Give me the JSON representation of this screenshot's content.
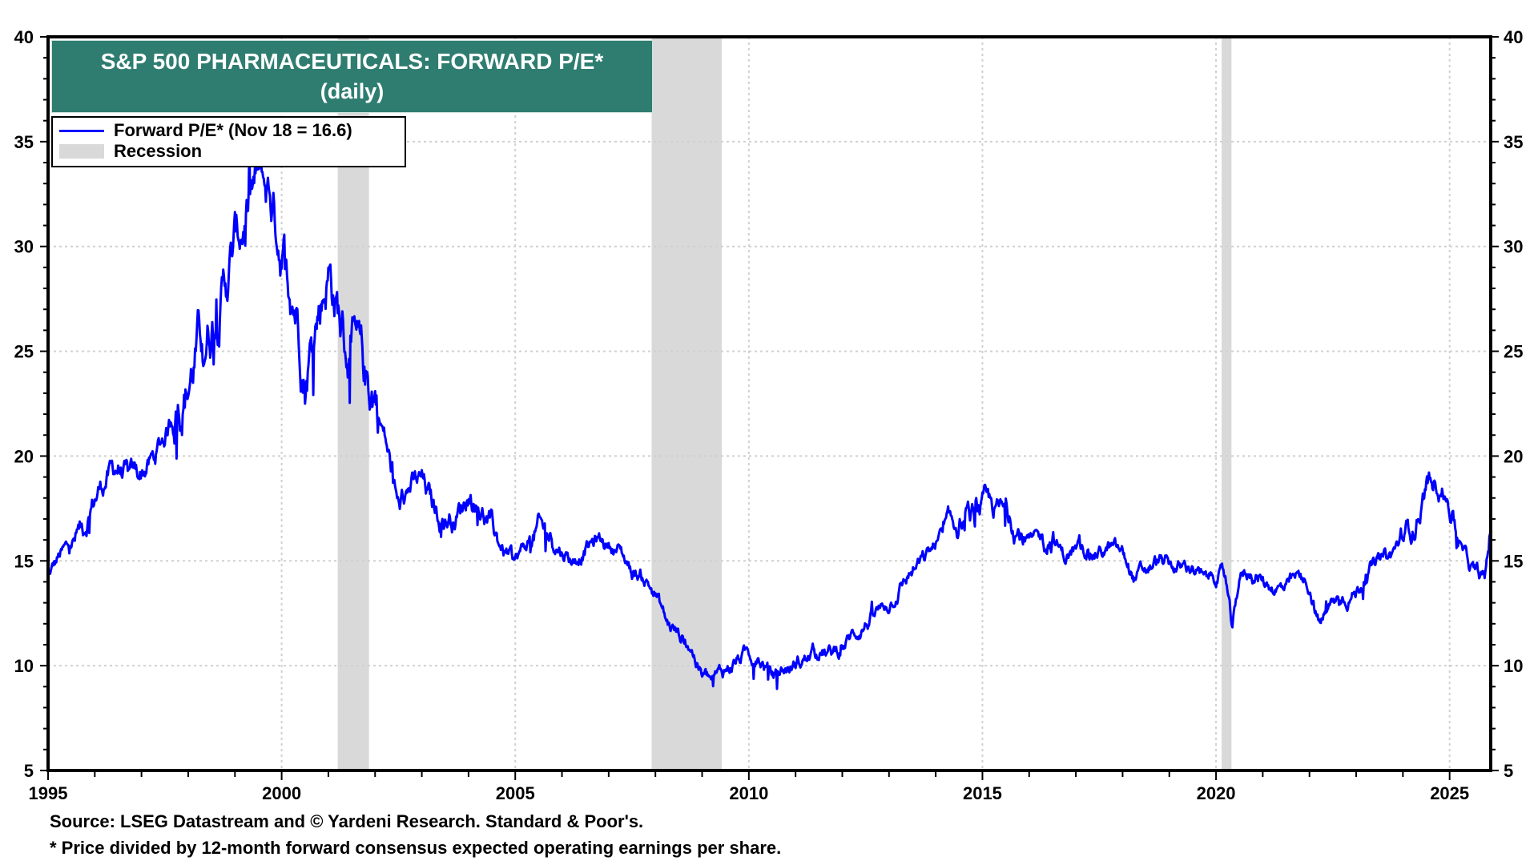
{
  "chart_data": {
    "type": "line",
    "title": "S&P 500 PHARMACEUTICALS: FORWARD P/E*",
    "subtitle": "(daily)",
    "xlabel": "",
    "ylabel": "",
    "xlim": [
      1995,
      2025.88
    ],
    "ylim": [
      5,
      40
    ],
    "x_ticks": [
      "1995",
      "2000",
      "2005",
      "2010",
      "2015",
      "2020",
      "2025"
    ],
    "y_ticks_left": [
      "5",
      "10",
      "15",
      "20",
      "25",
      "30",
      "35",
      "40"
    ],
    "y_ticks_right": [
      "5",
      "10",
      "15",
      "20",
      "25",
      "30",
      "35",
      "40"
    ],
    "grid": true,
    "legend_position": "top-left",
    "legend": [
      {
        "label": "Forward P/E* (Nov 18 = 16.6)",
        "type": "line",
        "color": "#0000ff"
      },
      {
        "label": "Recession",
        "type": "area",
        "color": "#d9d9d9"
      }
    ],
    "recessions": [
      [
        2001.2,
        2001.87
      ],
      [
        2007.92,
        2009.42
      ],
      [
        2020.12,
        2020.33
      ]
    ],
    "series": [
      {
        "name": "Forward P/E*",
        "color": "#0000ff",
        "x": [
          1995.0,
          1995.25,
          1995.5,
          1995.75,
          1996.0,
          1996.25,
          1996.5,
          1996.75,
          1997.0,
          1997.25,
          1997.5,
          1997.75,
          1998.0,
          1998.25,
          1998.5,
          1998.75,
          1999.0,
          1999.25,
          1999.5,
          1999.75,
          2000.0,
          2000.2,
          2000.35,
          2000.5,
          2000.75,
          2001.0,
          2001.2,
          2001.4,
          2001.6,
          2001.8,
          2002.0,
          2002.25,
          2002.5,
          2002.75,
          2003.0,
          2003.25,
          2003.5,
          2003.75,
          2004.0,
          2004.25,
          2004.5,
          2004.75,
          2005.0,
          2005.25,
          2005.5,
          2005.75,
          2006.0,
          2006.25,
          2006.5,
          2006.75,
          2007.0,
          2007.25,
          2007.5,
          2007.75,
          2008.0,
          2008.25,
          2008.5,
          2008.75,
          2009.0,
          2009.25,
          2009.5,
          2009.75,
          2010.0,
          2010.25,
          2010.5,
          2010.75,
          2011.0,
          2011.25,
          2011.5,
          2011.75,
          2012.0,
          2012.25,
          2012.5,
          2012.75,
          2013.0,
          2013.25,
          2013.5,
          2013.75,
          2014.0,
          2014.25,
          2014.5,
          2014.75,
          2015.0,
          2015.25,
          2015.5,
          2015.75,
          2016.0,
          2016.25,
          2016.5,
          2016.75,
          2017.0,
          2017.25,
          2017.5,
          2017.75,
          2018.0,
          2018.25,
          2018.5,
          2018.75,
          2019.0,
          2019.25,
          2019.5,
          2019.75,
          2020.0,
          2020.2,
          2020.35,
          2020.5,
          2020.75,
          2021.0,
          2021.25,
          2021.5,
          2021.75,
          2022.0,
          2022.2,
          2022.5,
          2022.75,
          2023.0,
          2023.25,
          2023.5,
          2023.75,
          2024.0,
          2024.25,
          2024.5,
          2024.75,
          2025.0,
          2025.25,
          2025.5,
          2025.75,
          2025.88
        ],
        "values": [
          14.2,
          15.2,
          15.8,
          16.5,
          18.0,
          19.0,
          19.5,
          18.8,
          19.2,
          19.8,
          21.0,
          22.5,
          23.5,
          25.5,
          26.5,
          28.0,
          30.0,
          31.5,
          33.0,
          32.5,
          30.0,
          28.5,
          27.0,
          24.0,
          26.5,
          29.0,
          27.0,
          25.0,
          24.5,
          23.5,
          23.0,
          20.5,
          17.5,
          18.5,
          18.8,
          17.5,
          17.0,
          17.2,
          18.2,
          17.5,
          16.5,
          15.5,
          15.0,
          15.8,
          16.5,
          16.2,
          15.5,
          15.0,
          15.6,
          16.0,
          15.8,
          15.5,
          14.5,
          14.2,
          13.5,
          12.0,
          11.5,
          11.0,
          9.5,
          9.2,
          9.8,
          10.3,
          10.6,
          10.2,
          9.5,
          9.8,
          10.0,
          10.4,
          10.8,
          10.5,
          10.9,
          11.5,
          12.0,
          12.5,
          13.0,
          13.8,
          14.5,
          15.0,
          15.8,
          16.4,
          16.8,
          17.0,
          17.5,
          17.5,
          17.2,
          16.5,
          15.8,
          16.0,
          16.2,
          15.2,
          15.5,
          15.5,
          15.4,
          15.6,
          15.3,
          14.2,
          14.5,
          15.0,
          14.8,
          14.6,
          14.8,
          14.0,
          14.4,
          14.2,
          11.5,
          14.2,
          14.5,
          14.0,
          13.8,
          13.6,
          14.2,
          13.8,
          12.0,
          13.0,
          13.3,
          13.5,
          14.5,
          15.0,
          15.2,
          16.2,
          16.8,
          18.5,
          19.0,
          17.8,
          15.5,
          14.5,
          14.0,
          16.6
        ]
      }
    ]
  },
  "footer": {
    "source": "Source: LSEG Datastream and © Yardeni Research. Standard & Poor's.",
    "note": "* Price divided by 12-month forward consensus expected operating earnings per share."
  }
}
